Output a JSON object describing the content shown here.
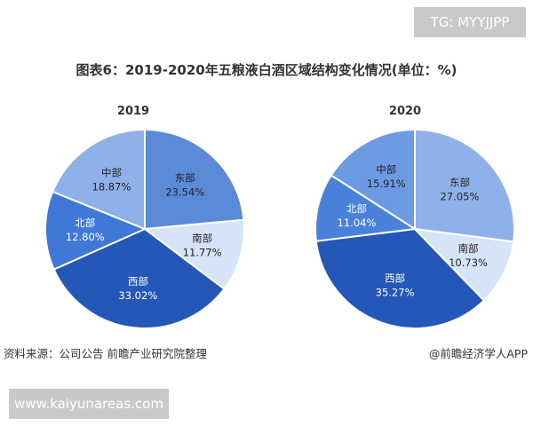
{
  "watermark_top": "TG: MYYJJPP",
  "watermark_bottom": "www.kaiyunareas.com",
  "source": "资料来源：公司公告 前瞻产业研究院整理",
  "credit": "@前瞻经济学人APP",
  "chart_data": {
    "type": "pie",
    "title": "图表6：2019-2020年五粮液白酒区域结构变化情况(单位：%)",
    "legend": "none",
    "charts": [
      {
        "label": "2019",
        "slices": [
          {
            "name": "东部",
            "value": 23.54,
            "text": "23.54%",
            "color": "#5b8bd8"
          },
          {
            "name": "南部",
            "value": 11.77,
            "text": "11.77%",
            "color": "#d7e4f8"
          },
          {
            "name": "西部",
            "value": 33.02,
            "text": "33.02%",
            "color": "#2557b8"
          },
          {
            "name": "北部",
            "value": 12.8,
            "text": "12.80%",
            "color": "#3f78d6"
          },
          {
            "name": "中部",
            "value": 18.87,
            "text": "18.87%",
            "color": "#8fb1ea"
          }
        ]
      },
      {
        "label": "2020",
        "slices": [
          {
            "name": "东部",
            "value": 27.05,
            "text": "27.05%",
            "color": "#8fb1ea"
          },
          {
            "name": "南部",
            "value": 10.73,
            "text": "10.73%",
            "color": "#d7e4f8"
          },
          {
            "name": "西部",
            "value": 35.27,
            "text": "35.27%",
            "color": "#2557b8"
          },
          {
            "name": "北部",
            "value": 11.04,
            "text": "11.04%",
            "color": "#4a82db"
          },
          {
            "name": "中部",
            "value": 15.91,
            "text": "15.91%",
            "color": "#6d9be3"
          }
        ]
      }
    ]
  }
}
